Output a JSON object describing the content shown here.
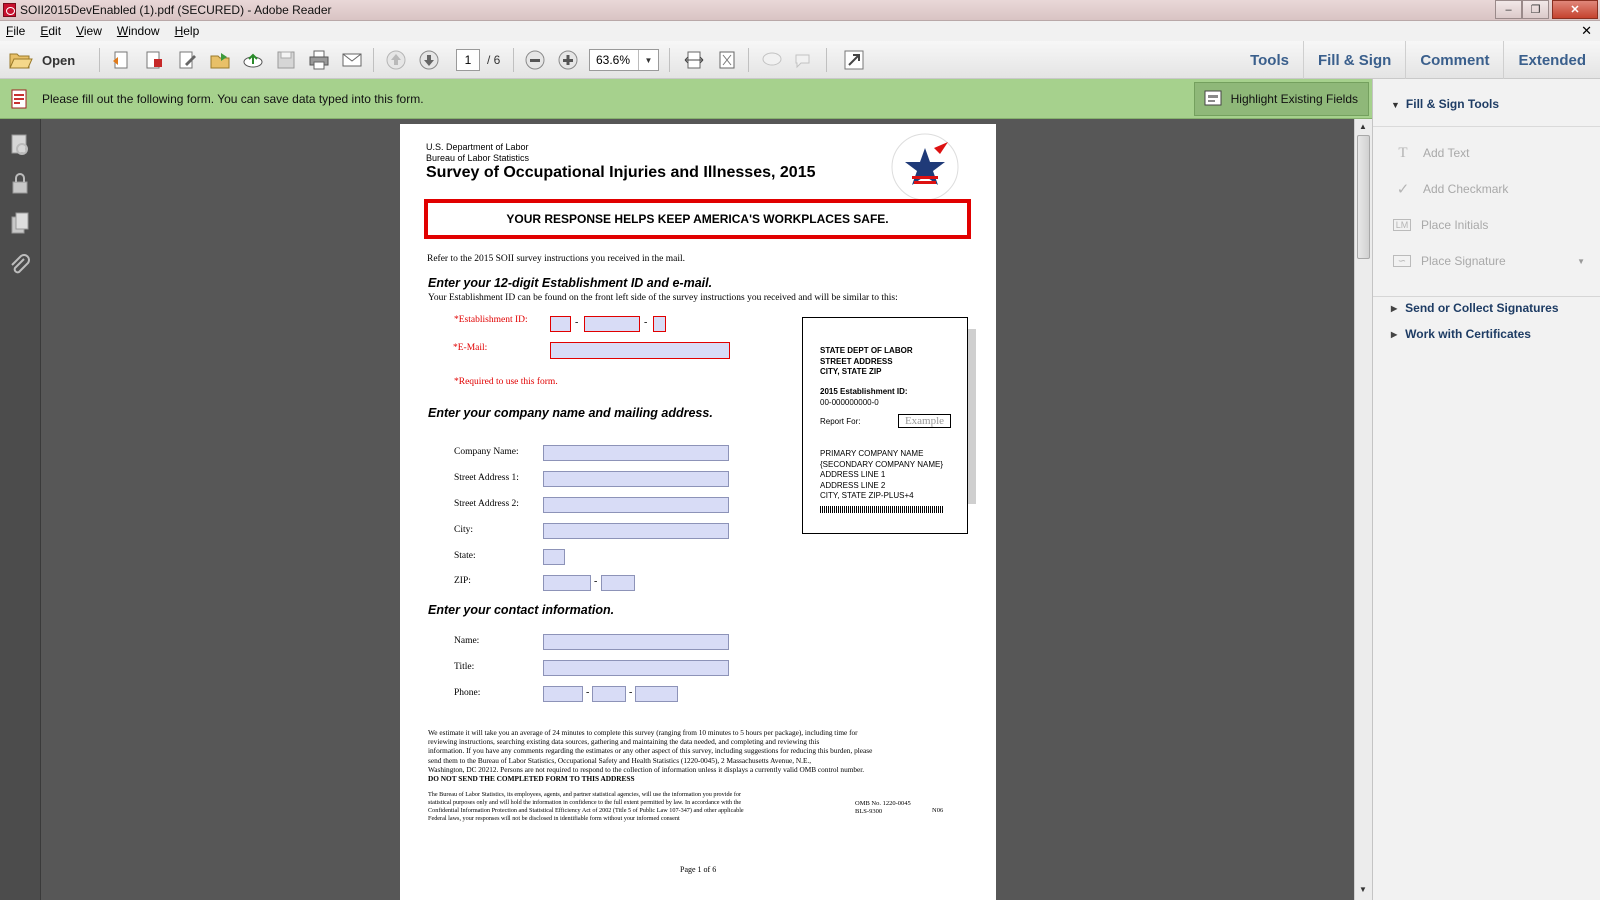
{
  "window": {
    "title": "SOII2015DevEnabled (1).pdf (SECURED) - Adobe Reader"
  },
  "menu": {
    "items": [
      "File",
      "Edit",
      "View",
      "Window",
      "Help"
    ]
  },
  "toolbar": {
    "open_label": "Open",
    "page_current": "1",
    "page_total": "/ 6",
    "zoom": "63.6%",
    "right_tabs": [
      "Tools",
      "Fill & Sign",
      "Comment",
      "Extended"
    ]
  },
  "infobar": {
    "message": "Please fill out the following form. You can save data typed into this form.",
    "highlight_label": "Highlight Existing Fields"
  },
  "panel": {
    "header": "Fill & Sign Tools",
    "tools": [
      "Add Text",
      "Add Checkmark",
      "Place Initials",
      "Place Signature"
    ],
    "sections": [
      "Send or Collect Signatures",
      "Work with Certificates"
    ]
  },
  "form": {
    "dept_line1": "U.S. Department of Labor",
    "dept_line2": "Bureau of Labor Statistics",
    "title": "Survey of Occupational Injuries and Illnesses, 2015",
    "banner": "YOUR RESPONSE HELPS KEEP AMERICA'S WORKPLACES SAFE.",
    "refer": "Refer to the 2015 SOII survey instructions you received in the mail.",
    "h_id": "Enter your 12-digit Establishment ID and e-mail.",
    "id_help": "Your Establishment ID can be found on the front left side of the survey instructions you received and will be similar to this:",
    "lbl_est_id": "*Establishment ID:",
    "lbl_email": "*E-Mail:",
    "required_note": "*Required to use this form.",
    "h_company": "Enter your company name and mailing address.",
    "lbl_company": "Company Name:",
    "lbl_street1": "Street Address 1:",
    "lbl_street2": "Street Address 2:",
    "lbl_city": "City:",
    "lbl_state": "State:",
    "lbl_zip": "ZIP:",
    "h_contact": "Enter your contact information.",
    "lbl_name": "Name:",
    "lbl_title": "Title:",
    "lbl_phone": "Phone:",
    "sample": {
      "l1": "STATE DEPT OF LABOR",
      "l2": "STREET ADDRESS",
      "l3": "CITY, STATE ZIP",
      "l4": "2015 Establishment ID:",
      "l5": "00-000000000-0",
      "report_for": "Report For:",
      "example": "Example",
      "a1": "PRIMARY COMPANY NAME",
      "a2": "{SECONDARY COMPANY NAME}",
      "a3": "ADDRESS LINE 1",
      "a4": "ADDRESS LINE 2",
      "a5": "CITY, STATE  ZIP-PLUS+4"
    },
    "burden": [
      "We estimate it will take you an average of 24 minutes to complete this survey (ranging from 10 minutes to 5 hours per package), including time for",
      "reviewing instructions, searching existing data sources, gathering and maintaining the data needed, and completing and reviewing this",
      "information.  If you have any comments regarding the estimates or any other aspect of this survey, including suggestions for reducing this burden, please",
      "send them to the Bureau of Labor Statistics, Occupational Safety and Health Statistics (1220-0045), 2 Massachusetts Avenue, N.E.,",
      "Washington, DC 20212.  Persons are not required to respond to the collection of information unless it displays a currently valid OMB control number."
    ],
    "do_not_send": "DO NOT SEND THE COMPLETED FORM TO THIS ADDRESS",
    "confidential": [
      "The Bureau of Labor Statistics, its employees, agents, and partner statistical agencies, will use the information you provide for",
      "statistical purposes only and will hold the information in confidence to the full extent permitted by law.  In accordance with the",
      "Confidential Information Protection and Statistical Efficiency Act of 2002 (Title 5 of Public Law 107-347) and other applicable",
      "Federal laws, your responses will not be disclosed in identifiable form without your informed consent"
    ],
    "omb": "OMB No. 1220-0045",
    "bls": "BLS-9300",
    "n06": "N06",
    "page_footer": "Page 1 of 6"
  }
}
